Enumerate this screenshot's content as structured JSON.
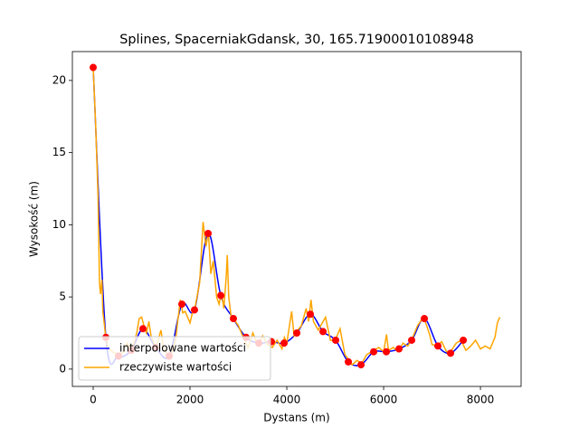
{
  "chart_data": {
    "type": "line",
    "title": "Splines, SpacerniakGdansk, 30, 165.71900010108948",
    "xlabel": "Dystans (m)",
    "ylabel": "Wysokość (m)",
    "xlim": [
      -430,
      8840
    ],
    "ylim": [
      -1.2,
      22
    ],
    "xticks": [
      0,
      2000,
      4000,
      6000,
      8000
    ],
    "yticks": [
      0,
      5,
      10,
      15,
      20
    ],
    "legend": "lower left",
    "series": [
      {
        "name": "interpolowane wartości",
        "color": "#0000ff",
        "marker_color": "#ff0000",
        "smooth": true,
        "x": [
          0,
          262,
          523,
          785,
          1028,
          1290,
          1570,
          1832,
          2093,
          2374,
          2636,
          2897,
          3159,
          3421,
          3682,
          3944,
          4206,
          4486,
          4748,
          5009,
          5271,
          5533,
          5794,
          6056,
          6318,
          6579,
          6841,
          7121,
          7383,
          7645
        ],
        "values": [
          20.9,
          2.2,
          0.9,
          1.3,
          2.8,
          1.5,
          0.9,
          4.5,
          4.1,
          9.4,
          5.1,
          3.5,
          2.2,
          1.8,
          1.9,
          1.8,
          2.5,
          3.8,
          2.6,
          2.0,
          0.5,
          0.3,
          1.2,
          1.2,
          1.4,
          2.0,
          3.5,
          1.6,
          1.1,
          2.0
        ]
      },
      {
        "name": "rzeczywiste wartości",
        "color": "#ffa500",
        "smooth": false,
        "x": [
          0,
          50,
          100,
          130,
          150,
          180,
          200,
          250,
          300,
          400,
          500,
          600,
          700,
          800,
          900,
          950,
          1000,
          1050,
          1100,
          1150,
          1200,
          1300,
          1400,
          1450,
          1500,
          1550,
          1600,
          1700,
          1800,
          1850,
          1900,
          2000,
          2050,
          2100,
          2200,
          2270,
          2330,
          2380,
          2430,
          2480,
          2550,
          2600,
          2650,
          2700,
          2750,
          2770,
          2800,
          2850,
          2900,
          3000,
          3100,
          3200,
          3300,
          3400,
          3500,
          3600,
          3700,
          3800,
          3900,
          3950,
          4000,
          4100,
          4150,
          4200,
          4300,
          4400,
          4450,
          4500,
          4550,
          4650,
          4700,
          4800,
          4900,
          5000,
          5100,
          5200,
          5270,
          5350,
          5450,
          5550,
          5650,
          5800,
          5900,
          6000,
          6060,
          6100,
          6200,
          6300,
          6400,
          6500,
          6600,
          6700,
          6800,
          6850,
          6950,
          7000,
          7100,
          7200,
          7300,
          7400,
          7500,
          7600,
          7700,
          7800,
          7900,
          8000,
          8100,
          8200,
          8300,
          8350,
          8400
        ],
        "values": [
          20.9,
          17,
          12,
          6,
          5.2,
          6.2,
          4,
          2.5,
          1.5,
          1.2,
          1,
          1.1,
          1.8,
          1.3,
          2.5,
          3.5,
          3.6,
          3,
          2.5,
          3.3,
          2.2,
          1.5,
          2.7,
          1.5,
          1.2,
          0.9,
          0.9,
          2,
          4.8,
          3.9,
          4.0,
          3.2,
          3.9,
          4.2,
          6,
          10.2,
          8.5,
          9.5,
          6.6,
          7.5,
          5,
          4.5,
          5.3,
          4.2,
          6.5,
          7.9,
          5,
          3.6,
          3.5,
          3,
          2.2,
          1.5,
          2.5,
          1.6,
          2.3,
          1.7,
          1.5,
          2.0,
          1.4,
          2.2,
          1.8,
          4.0,
          2.3,
          2.6,
          3.0,
          4.2,
          3.3,
          4.8,
          3.3,
          2.7,
          3.0,
          3.6,
          2.0,
          2.0,
          2.8,
          1.0,
          0.7,
          0.3,
          0.6,
          0.4,
          1.0,
          1.3,
          1.5,
          1.2,
          2.4,
          1.3,
          1.5,
          1.2,
          1.8,
          1.6,
          2.2,
          3.0,
          3.5,
          3.4,
          2.4,
          1.7,
          1.6,
          1.9,
          1.2,
          1.3,
          1.8,
          2.0,
          1.3,
          1.6,
          2.0,
          1.4,
          1.6,
          1.4,
          2.2,
          3.2,
          3.6
        ]
      }
    ]
  }
}
